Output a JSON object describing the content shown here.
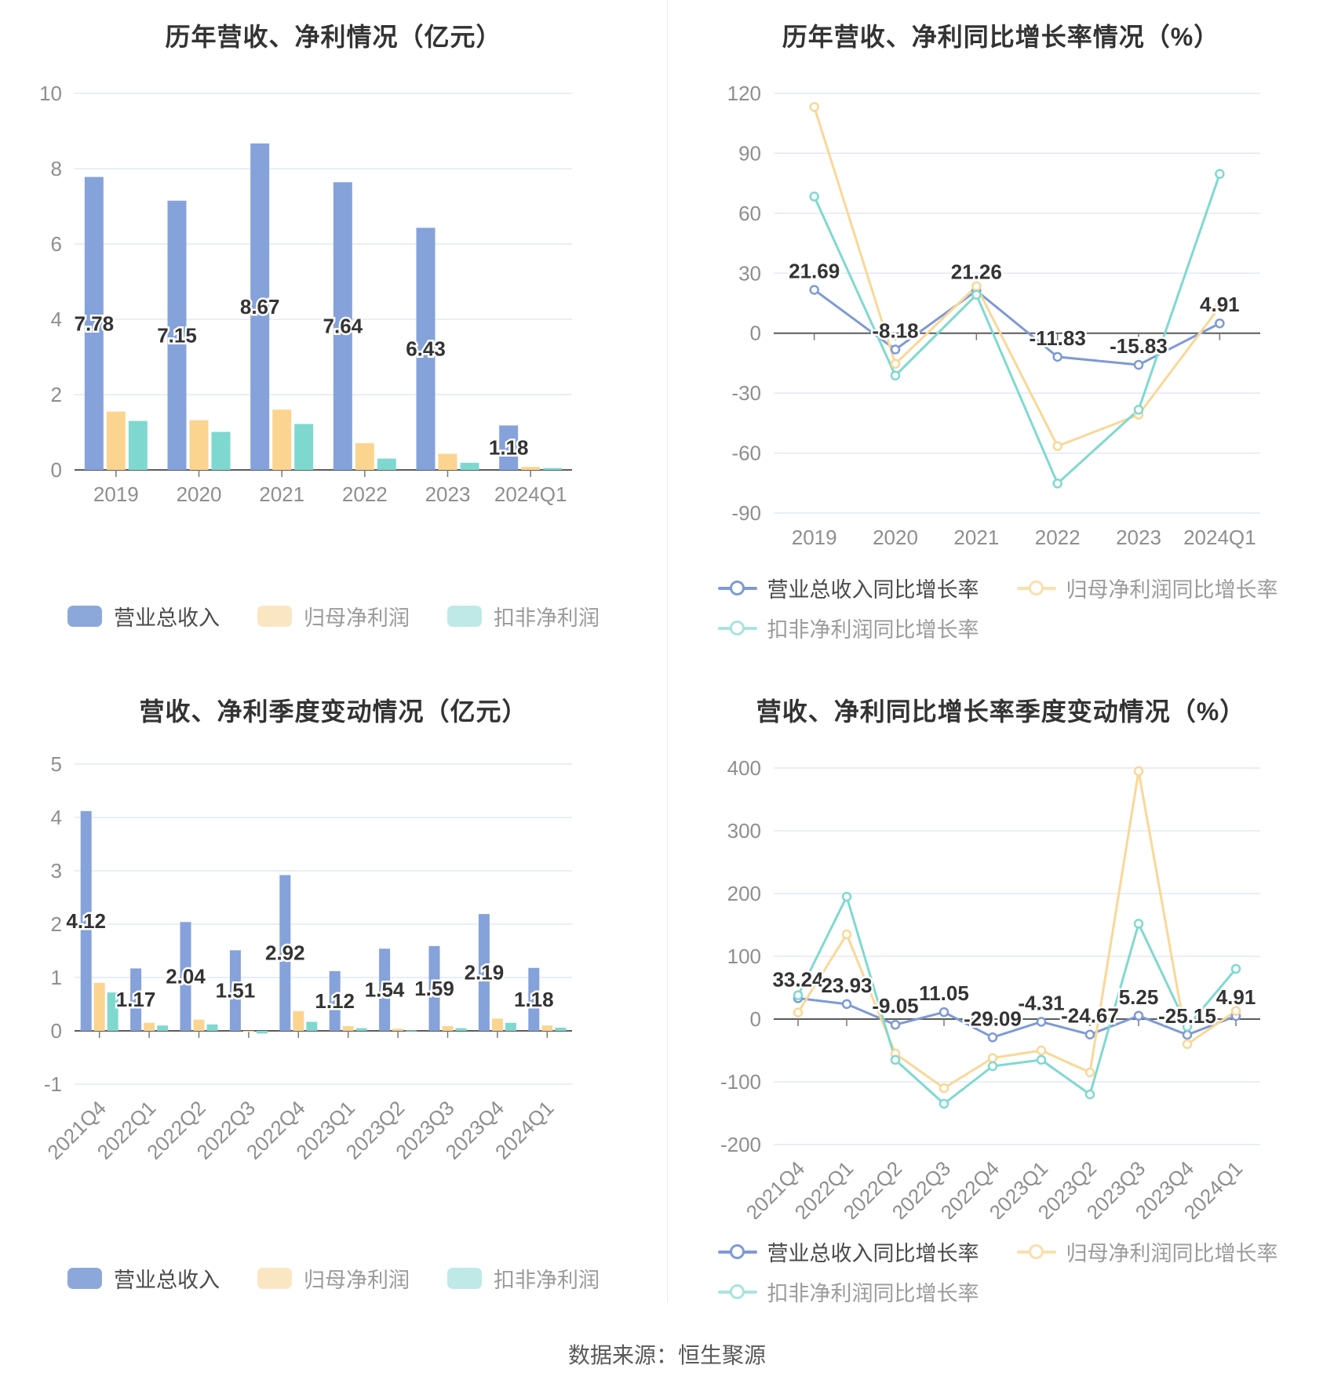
{
  "footer": {
    "source_text": "数据来源：恒生聚源"
  },
  "style": {
    "grid_line_color": "#E4E8F3",
    "zero_axis_color": "#5b5b5b",
    "axis_label_color": "#8E8E8E",
    "value_label_color": "#333333",
    "first_legend_text_color": "#4a4a4a",
    "other_legend_text_color": "#9b9b9b",
    "divider_color": "#ececec"
  },
  "chart_data": [
    {
      "type": "bar",
      "title": "历年营收、净利情况（亿元）",
      "categories": [
        "2019",
        "2020",
        "2021",
        "2022",
        "2023",
        "2024Q1"
      ],
      "series": [
        {
          "name": "营业总收入",
          "color": "#85A2DA",
          "legend_color": "#8CA8DB",
          "values": [
            7.78,
            7.15,
            8.67,
            7.64,
            6.43,
            1.18
          ],
          "labeled": true
        },
        {
          "name": "归母净利润",
          "color": "#FBD490",
          "legend_color": "#FBE6C4",
          "values": [
            1.55,
            1.32,
            1.6,
            0.71,
            0.43,
            0.08
          ],
          "labeled": false
        },
        {
          "name": "扣非净利润",
          "color": "#7FD8D0",
          "legend_color": "#BFE9E7",
          "values": [
            1.3,
            1.01,
            1.22,
            0.3,
            0.19,
            0.05
          ],
          "labeled": false
        }
      ],
      "ylim": [
        0,
        10
      ],
      "yticks": [
        10,
        8,
        6,
        4,
        2,
        0
      ],
      "x_rotated": false,
      "legend_marker": "rect",
      "grid": true
    },
    {
      "type": "line",
      "title": "历年营收、净利同比增长率情况（%）",
      "categories": [
        "2019",
        "2020",
        "2021",
        "2022",
        "2023",
        "2024Q1"
      ],
      "series": [
        {
          "name": "营业总收入同比增长率",
          "color": "#7D9AD6",
          "legend_color": "#7D9AD6",
          "values": [
            21.69,
            -8.18,
            21.26,
            -11.83,
            -15.83,
            4.91
          ],
          "labeled": true
        },
        {
          "name": "归母净利润同比增长率",
          "color": "#FAD797",
          "legend_color": "#FBDFAD",
          "values": [
            113.2,
            -15.3,
            23.5,
            -56.5,
            -40.8,
            13.2
          ],
          "labeled": false
        },
        {
          "name": "扣非净利润同比增长率",
          "color": "#7FD9D0",
          "legend_color": "#A8E4DF",
          "values": [
            68.4,
            -21.2,
            19.2,
            -75.2,
            -38.3,
            79.7
          ],
          "labeled": false
        }
      ],
      "ylim": [
        -90,
        120
      ],
      "yticks": [
        120,
        90,
        60,
        30,
        0,
        -30,
        -60,
        -90
      ],
      "x_rotated": false,
      "legend_marker": "ring",
      "grid": true
    },
    {
      "type": "bar",
      "title": "营收、净利季度变动情况（亿元）",
      "categories": [
        "2021Q4",
        "2022Q1",
        "2022Q2",
        "2022Q3",
        "2022Q4",
        "2023Q1",
        "2023Q2",
        "2023Q3",
        "2023Q4",
        "2024Q1"
      ],
      "series": [
        {
          "name": "营业总收入",
          "color": "#85A2DA",
          "legend_color": "#8CA8DB",
          "values": [
            4.12,
            1.17,
            2.04,
            1.51,
            2.92,
            1.12,
            1.54,
            1.59,
            2.19,
            1.18
          ],
          "labeled": true
        },
        {
          "name": "归母净利润",
          "color": "#FBD490",
          "legend_color": "#FBE6C4",
          "values": [
            0.9,
            0.15,
            0.21,
            -0.02,
            0.37,
            0.09,
            0.04,
            0.09,
            0.23,
            0.1
          ],
          "labeled": false
        },
        {
          "name": "扣非净利润",
          "color": "#7FD8D0",
          "legend_color": "#BFE9E7",
          "values": [
            0.72,
            0.1,
            0.12,
            -0.05,
            0.17,
            0.05,
            0.01,
            0.05,
            0.15,
            0.06
          ],
          "labeled": false
        }
      ],
      "ylim": [
        -1,
        5
      ],
      "yticks": [
        5,
        4,
        3,
        2,
        1,
        0,
        -1
      ],
      "x_rotated": true,
      "legend_marker": "rect",
      "grid": true
    },
    {
      "type": "line",
      "title": "营收、净利同比增长率季度变动情况（%）",
      "categories": [
        "2021Q4",
        "2022Q1",
        "2022Q2",
        "2022Q3",
        "2022Q4",
        "2023Q1",
        "2023Q2",
        "2023Q3",
        "2023Q4",
        "2024Q1"
      ],
      "series": [
        {
          "name": "营业总收入同比增长率",
          "color": "#7D9AD6",
          "legend_color": "#7D9AD6",
          "values": [
            33.24,
            23.93,
            -9.05,
            11.05,
            -29.09,
            -4.31,
            -24.67,
            5.25,
            -25.15,
            4.91
          ],
          "labeled": true
        },
        {
          "name": "归母净利润同比增长率",
          "color": "#FAD797",
          "legend_color": "#FBDFAD",
          "values": [
            10.5,
            135.0,
            -55.0,
            -110.0,
            -62.0,
            -50.0,
            -85.0,
            395.0,
            -40.0,
            13.0
          ],
          "labeled": false
        },
        {
          "name": "扣非净利润同比增长率",
          "color": "#7FD9D0",
          "legend_color": "#A8E4DF",
          "values": [
            38.0,
            195.0,
            -65.0,
            -135.0,
            -75.0,
            -65.0,
            -120.0,
            152.0,
            -12.0,
            80.0
          ],
          "labeled": false
        }
      ],
      "ylim": [
        -200,
        400
      ],
      "yticks": [
        400,
        300,
        200,
        100,
        0,
        -100,
        -200
      ],
      "x_rotated": true,
      "legend_marker": "ring",
      "grid": true
    }
  ]
}
